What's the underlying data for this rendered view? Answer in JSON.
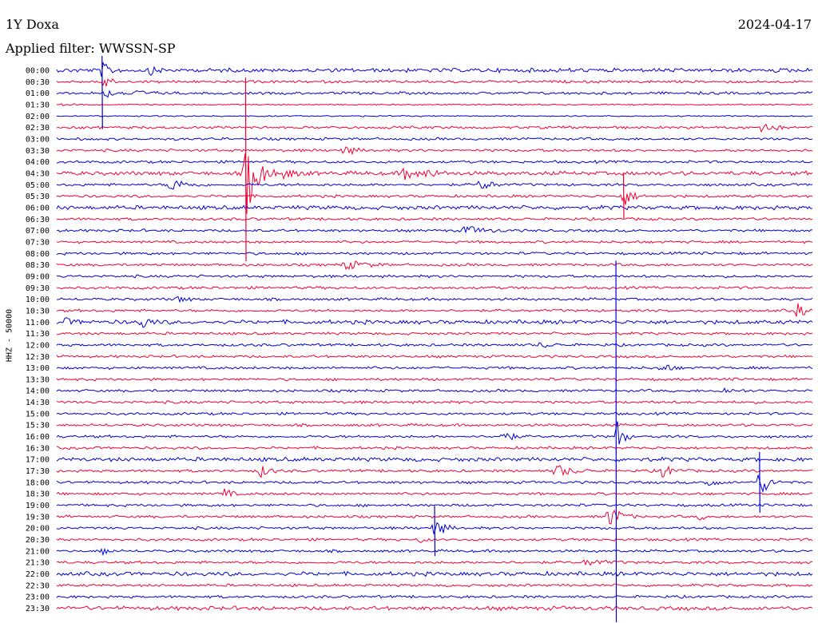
{
  "header": {
    "station": "1Y Doxa",
    "date": "2024-04-17",
    "filter_label": "Applied filter: WWSSN-SP"
  },
  "chart_data": {
    "type": "line",
    "title": "1Y Doxa",
    "date": "2024-04-17",
    "filter": "WWSSN-SP",
    "ylabel": "HHZ - 50000",
    "colors": [
      "#0000cc",
      "#ee0033"
    ],
    "row_labels": [
      "00:00",
      "00:30",
      "01:00",
      "01:30",
      "02:00",
      "02:30",
      "03:00",
      "03:30",
      "04:00",
      "04:30",
      "05:00",
      "05:30",
      "06:00",
      "06:30",
      "07:00",
      "07:30",
      "08:00",
      "08:30",
      "09:00",
      "09:30",
      "10:00",
      "10:30",
      "11:00",
      "11:30",
      "12:00",
      "12:30",
      "13:00",
      "13:30",
      "14:00",
      "14:30",
      "15:00",
      "15:30",
      "16:00",
      "16:30",
      "17:00",
      "17:30",
      "18:00",
      "18:30",
      "19:00",
      "19:30",
      "20:00",
      "20:30",
      "21:00",
      "21:30",
      "22:00",
      "22:30",
      "23:00",
      "23:30"
    ],
    "row_noise": [
      3,
      2,
      2,
      1,
      1,
      2,
      2,
      2,
      2,
      3,
      2,
      2,
      3,
      2,
      2,
      2,
      2,
      2,
      2,
      2,
      2,
      2,
      3,
      2,
      2,
      2,
      2,
      2,
      2,
      2,
      2,
      2,
      2,
      2,
      3,
      2,
      2,
      2,
      2,
      2,
      2,
      2,
      2,
      2,
      3,
      2,
      2,
      3
    ],
    "events": [
      {
        "row": 0,
        "t": 0.06,
        "amp": 9,
        "dur": 0.03
      },
      {
        "row": 0,
        "t": 0.12,
        "amp": 6,
        "dur": 0.03
      },
      {
        "row": 1,
        "t": 0.06,
        "amp": 20,
        "dur": 0.02
      },
      {
        "row": 2,
        "t": 0.06,
        "amp": 8,
        "dur": 0.03
      },
      {
        "row": 2,
        "t": 0.095,
        "amp": 5,
        "dur": 0.05
      },
      {
        "row": 3,
        "t": 0.01,
        "amp": 4,
        "dur": 0.02
      },
      {
        "row": 5,
        "t": 0.93,
        "amp": 10,
        "dur": 0.04
      },
      {
        "row": 7,
        "t": 0.38,
        "amp": 8,
        "dur": 0.03
      },
      {
        "row": 9,
        "t": 0.25,
        "amp": 55,
        "dur": 0.04
      },
      {
        "row": 9,
        "t": 0.3,
        "amp": 6,
        "dur": 0.04
      },
      {
        "row": 9,
        "t": 0.46,
        "amp": 8,
        "dur": 0.04
      },
      {
        "row": 9,
        "t": 0.49,
        "amp": 6,
        "dur": 0.04
      },
      {
        "row": 10,
        "t": 0.15,
        "amp": 9,
        "dur": 0.05
      },
      {
        "row": 10,
        "t": 0.56,
        "amp": 8,
        "dur": 0.04
      },
      {
        "row": 11,
        "t": 0.75,
        "amp": 14,
        "dur": 0.03
      },
      {
        "row": 14,
        "t": 0.54,
        "amp": 6,
        "dur": 0.06
      },
      {
        "row": 17,
        "t": 0.38,
        "amp": 6,
        "dur": 0.07
      },
      {
        "row": 20,
        "t": 0.16,
        "amp": 4,
        "dur": 0.03
      },
      {
        "row": 21,
        "t": 0.98,
        "amp": 9,
        "dur": 0.03
      },
      {
        "row": 22,
        "t": 0.01,
        "amp": 4,
        "dur": 0.04
      },
      {
        "row": 22,
        "t": 0.11,
        "amp": 9,
        "dur": 0.03
      },
      {
        "row": 24,
        "t": 0.64,
        "amp": 4,
        "dur": 0.03
      },
      {
        "row": 26,
        "t": 0.8,
        "amp": 7,
        "dur": 0.03
      },
      {
        "row": 28,
        "t": 0.88,
        "amp": 4,
        "dur": 0.04
      },
      {
        "row": 32,
        "t": 0.59,
        "amp": 9,
        "dur": 0.03
      },
      {
        "row": 32,
        "t": 0.74,
        "amp": 30,
        "dur": 0.02
      },
      {
        "row": 35,
        "t": 0.27,
        "amp": 8,
        "dur": 0.03
      },
      {
        "row": 35,
        "t": 0.66,
        "amp": 9,
        "dur": 0.05
      },
      {
        "row": 35,
        "t": 0.8,
        "amp": 9,
        "dur": 0.04
      },
      {
        "row": 36,
        "t": 0.86,
        "amp": 7,
        "dur": 0.03
      },
      {
        "row": 36,
        "t": 0.93,
        "amp": 20,
        "dur": 0.03
      },
      {
        "row": 37,
        "t": 0.22,
        "amp": 10,
        "dur": 0.02
      },
      {
        "row": 39,
        "t": 0.73,
        "amp": 16,
        "dur": 0.04
      },
      {
        "row": 39,
        "t": 0.85,
        "amp": 4,
        "dur": 0.02
      },
      {
        "row": 40,
        "t": 0.5,
        "amp": 14,
        "dur": 0.03
      },
      {
        "row": 41,
        "t": 0.48,
        "amp": 4,
        "dur": 0.02
      },
      {
        "row": 42,
        "t": 0.06,
        "amp": 7,
        "dur": 0.02
      },
      {
        "row": 43,
        "t": 0.7,
        "amp": 5,
        "dur": 0.05
      }
    ],
    "spikes": [
      {
        "row": 2,
        "t": 0.06,
        "up": 48,
        "down": 45
      },
      {
        "row": 9,
        "t": 0.25,
        "up": 120,
        "down": 110
      },
      {
        "row": 11,
        "t": 0.75,
        "up": 28,
        "down": 28
      },
      {
        "row": 32,
        "t": 0.74,
        "up": 220,
        "down": 235
      },
      {
        "row": 36,
        "t": 0.93,
        "up": 38,
        "down": 38
      },
      {
        "row": 40,
        "t": 0.5,
        "up": 28,
        "down": 35
      }
    ]
  }
}
